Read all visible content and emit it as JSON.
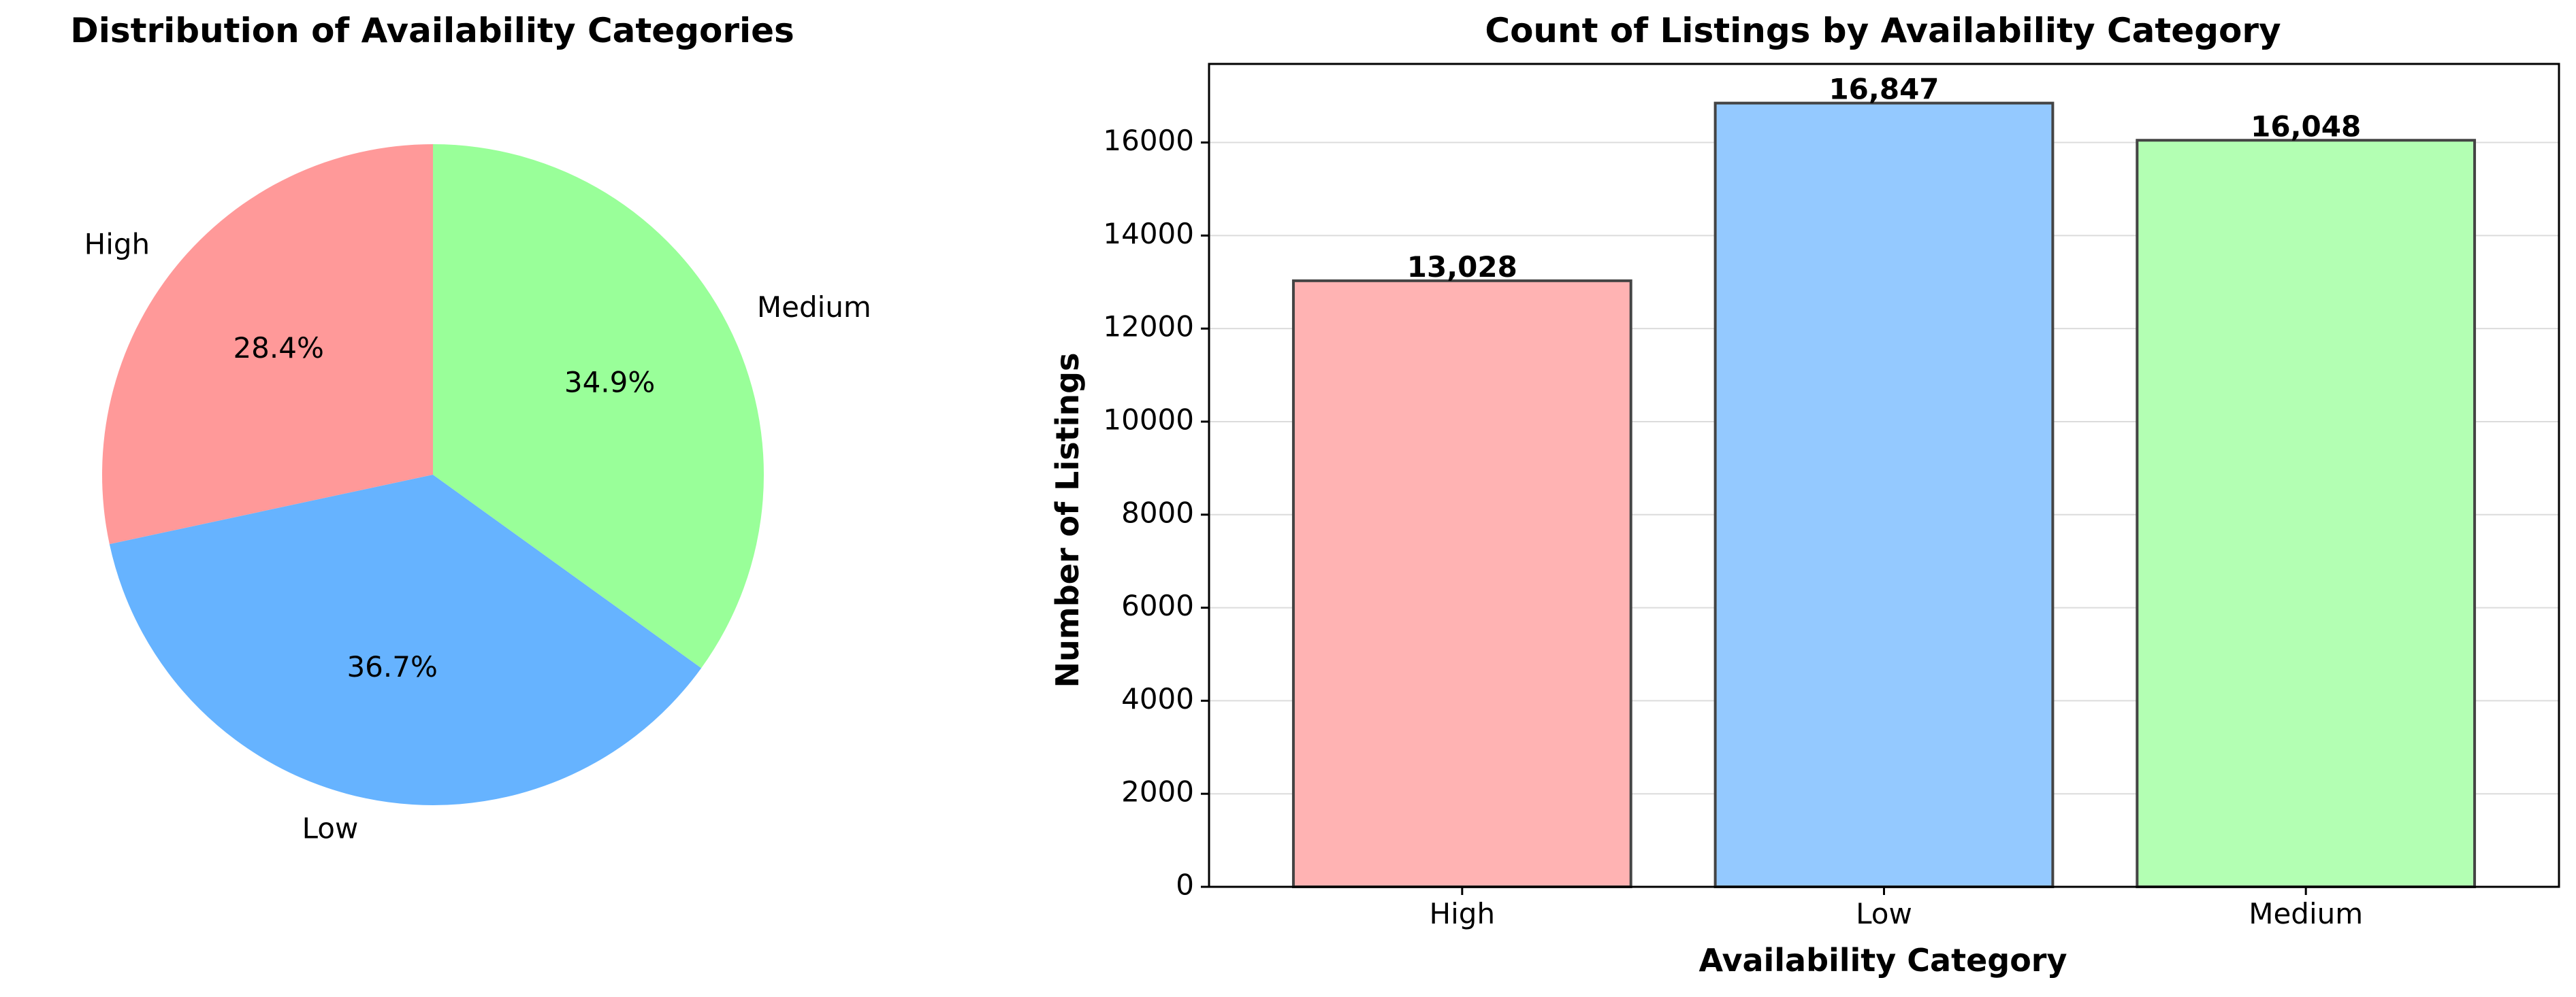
{
  "chart_data": [
    {
      "type": "pie",
      "title": "Distribution of Availability Categories",
      "labels": [
        "High",
        "Low",
        "Medium"
      ],
      "values": [
        13028,
        16847,
        16048
      ],
      "percent_labels": [
        "28.4%",
        "36.7%",
        "34.9%"
      ],
      "colors": [
        "#ff9999",
        "#66b3ff",
        "#99ff99"
      ],
      "start_angle_deg": 90,
      "direction": "counterclockwise"
    },
    {
      "type": "bar",
      "title": "Count of Listings by Availability Category",
      "categories": [
        "High",
        "Low",
        "Medium"
      ],
      "values": [
        13028,
        16847,
        16048
      ],
      "value_labels": [
        "13,028",
        "16,847",
        "16,048"
      ],
      "colors": [
        "#ffb3b3",
        "#94c9ff",
        "#b3ffb3"
      ],
      "edge_color": "#444444",
      "xlabel": "Availability Category",
      "ylabel": "Number of Listings",
      "ylim": [
        0,
        17689
      ],
      "yticks": [
        0,
        2000,
        4000,
        6000,
        8000,
        10000,
        12000,
        14000,
        16000
      ],
      "grid": "y"
    }
  ]
}
